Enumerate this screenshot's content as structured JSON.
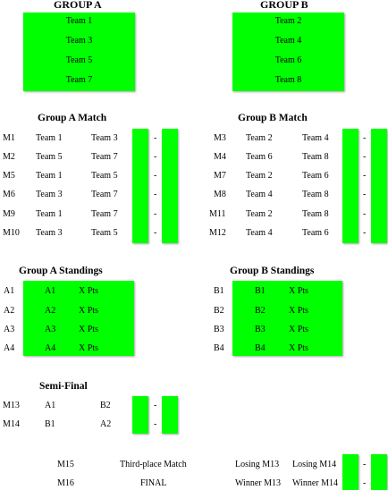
{
  "colors": {
    "accent": "#00ff00"
  },
  "group_a": {
    "title": "GROUP  A",
    "teams": [
      "Team 1",
      "Team 3",
      "Team 5",
      "Team 7"
    ]
  },
  "group_b": {
    "title": "GROUP  B",
    "teams": [
      "Team 2",
      "Team 4",
      "Team 6",
      "Team 8"
    ]
  },
  "group_a_match": {
    "title": "Group A Match",
    "rows": [
      {
        "id": "M1",
        "home": "Team 1",
        "away": "Team 3"
      },
      {
        "id": "M2",
        "home": "Team 5",
        "away": "Team 7"
      },
      {
        "id": "M5",
        "home": "Team 1",
        "away": "Team 5"
      },
      {
        "id": "M6",
        "home": "Team 3",
        "away": "Team 7"
      },
      {
        "id": "M9",
        "home": "Team 1",
        "away": "Team 7"
      },
      {
        "id": "M10",
        "home": "Team 3",
        "away": "Team 5"
      }
    ]
  },
  "group_b_match": {
    "title": "Group B Match",
    "rows": [
      {
        "id": "M3",
        "home": "Team 2",
        "away": "Team 4"
      },
      {
        "id": "M4",
        "home": "Team 6",
        "away": "Team 8"
      },
      {
        "id": "M7",
        "home": "Team 2",
        "away": "Team 6"
      },
      {
        "id": "M8",
        "home": "Team 4",
        "away": "Team 8"
      },
      {
        "id": "M11",
        "home": "Team 2",
        "away": "Team 8"
      },
      {
        "id": "M12",
        "home": "Team 4",
        "away": "Team 6"
      }
    ]
  },
  "score_sep": "-",
  "group_a_standings": {
    "title": "Group A Standings",
    "rows": [
      {
        "rank": "A1",
        "pos": "A1",
        "pts": "X Pts"
      },
      {
        "rank": "A2",
        "pos": "A2",
        "pts": "X Pts"
      },
      {
        "rank": "A3",
        "pos": "A3",
        "pts": "X Pts"
      },
      {
        "rank": "A4",
        "pos": "A4",
        "pts": "X Pts"
      }
    ]
  },
  "group_b_standings": {
    "title": "Group B Standings",
    "rows": [
      {
        "rank": "B1",
        "pos": "B1",
        "pts": "X Pts"
      },
      {
        "rank": "B2",
        "pos": "B2",
        "pts": "X Pts"
      },
      {
        "rank": "B3",
        "pos": "B3",
        "pts": "X Pts"
      },
      {
        "rank": "B4",
        "pos": "B4",
        "pts": "X Pts"
      }
    ]
  },
  "semi_final": {
    "title": "Semi-Final",
    "rows": [
      {
        "id": "M13",
        "home": "A1",
        "away": "B2"
      },
      {
        "id": "M14",
        "home": "B1",
        "away": "A2"
      }
    ]
  },
  "finals": {
    "rows": [
      {
        "id": "M15",
        "name": "Third-place Match",
        "home": "Losing M13",
        "away": "Losing M14"
      },
      {
        "id": "M16",
        "name": "FINAL",
        "home": "Winner M13",
        "away": "Winner M14"
      }
    ]
  }
}
